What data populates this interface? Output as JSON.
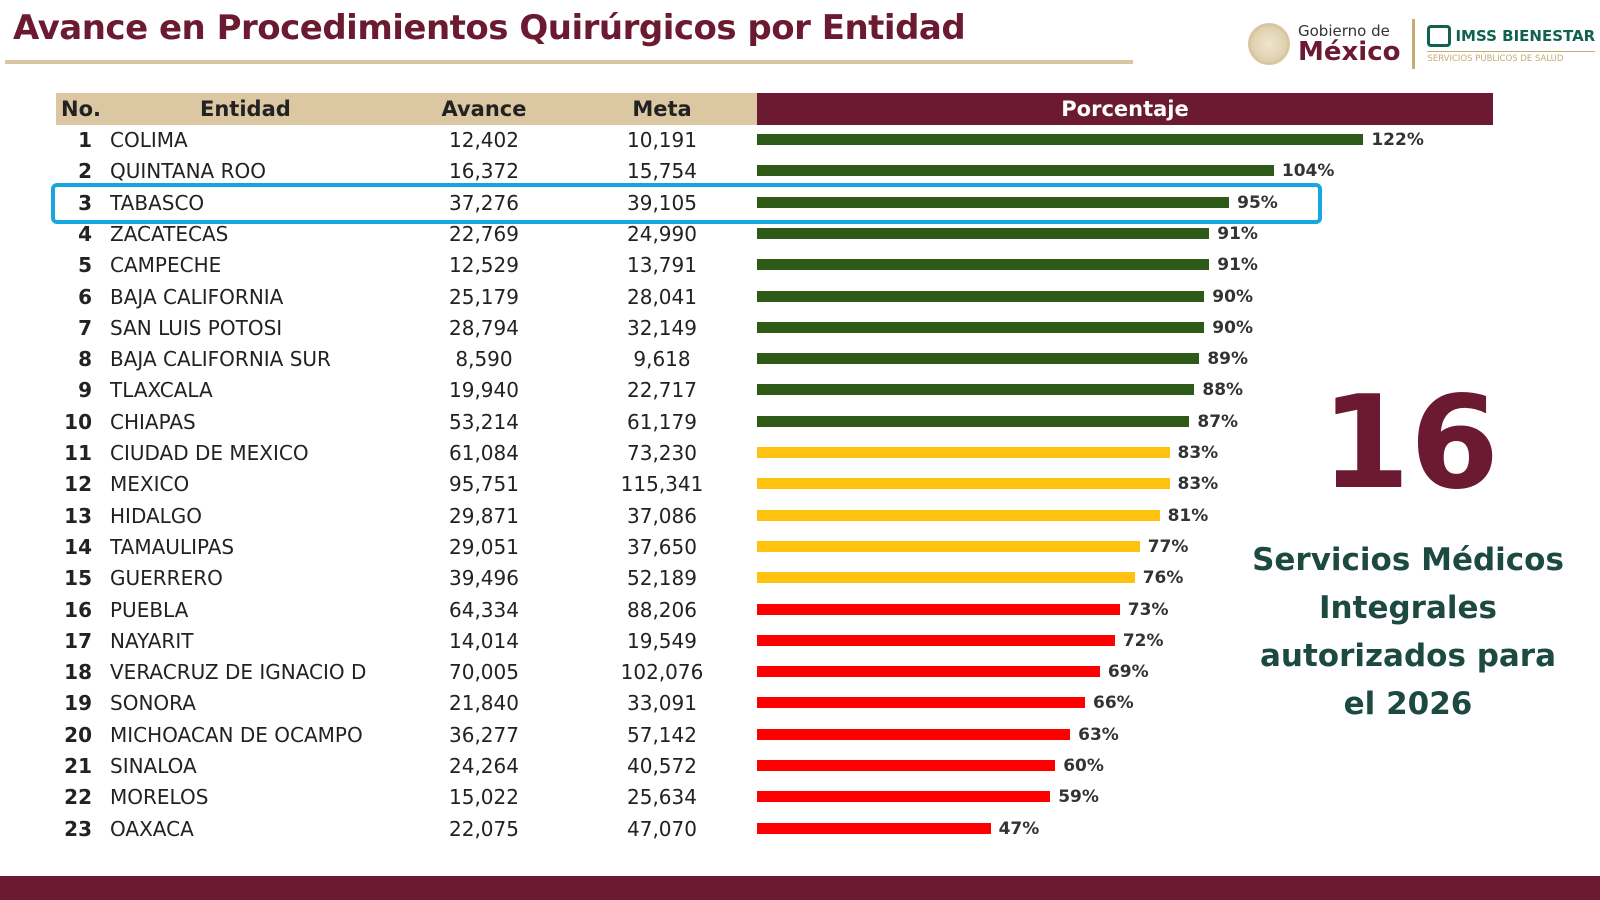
{
  "title": "Avance en Procedimientos Quirúrgicos por Entidad",
  "logos": {
    "gobierno_line1": "Gobierno de",
    "gobierno_line2": "México",
    "imss": "IMSS BIENESTAR",
    "imss_sub": "SERVICIOS PÚBLICOS DE SALUD"
  },
  "table": {
    "headers": {
      "no": "No.",
      "entidad": "Entidad",
      "avance": "Avance",
      "meta": "Meta",
      "porcentaje": "Porcentaje"
    },
    "rows": [
      {
        "no": "1",
        "entidad": "COLIMA",
        "avance": "12,402",
        "meta": "10,191",
        "pct": "122%"
      },
      {
        "no": "2",
        "entidad": "QUINTANA ROO",
        "avance": "16,372",
        "meta": "15,754",
        "pct": "104%"
      },
      {
        "no": "3",
        "entidad": "TABASCO",
        "avance": "37,276",
        "meta": "39,105",
        "pct": "95%"
      },
      {
        "no": "4",
        "entidad": "ZACATECAS",
        "avance": "22,769",
        "meta": "24,990",
        "pct": "91%"
      },
      {
        "no": "5",
        "entidad": "CAMPECHE",
        "avance": "12,529",
        "meta": "13,791",
        "pct": "91%"
      },
      {
        "no": "6",
        "entidad": "BAJA CALIFORNIA",
        "avance": "25,179",
        "meta": "28,041",
        "pct": "90%"
      },
      {
        "no": "7",
        "entidad": "SAN LUIS POTOSI",
        "avance": "28,794",
        "meta": "32,149",
        "pct": "90%"
      },
      {
        "no": "8",
        "entidad": "BAJA CALIFORNIA SUR",
        "avance": "8,590",
        "meta": "9,618",
        "pct": "89%"
      },
      {
        "no": "9",
        "entidad": "TLAXCALA",
        "avance": "19,940",
        "meta": "22,717",
        "pct": "88%"
      },
      {
        "no": "10",
        "entidad": "CHIAPAS",
        "avance": "53,214",
        "meta": "61,179",
        "pct": "87%"
      },
      {
        "no": "11",
        "entidad": "CIUDAD DE MEXICO",
        "avance": "61,084",
        "meta": "73,230",
        "pct": "83%"
      },
      {
        "no": "12",
        "entidad": "MEXICO",
        "avance": "95,751",
        "meta": "115,341",
        "pct": "83%"
      },
      {
        "no": "13",
        "entidad": "HIDALGO",
        "avance": "29,871",
        "meta": "37,086",
        "pct": "81%"
      },
      {
        "no": "14",
        "entidad": "TAMAULIPAS",
        "avance": "29,051",
        "meta": "37,650",
        "pct": "77%"
      },
      {
        "no": "15",
        "entidad": "GUERRERO",
        "avance": "39,496",
        "meta": "52,189",
        "pct": "76%"
      },
      {
        "no": "16",
        "entidad": "PUEBLA",
        "avance": "64,334",
        "meta": "88,206",
        "pct": "73%"
      },
      {
        "no": "17",
        "entidad": "NAYARIT",
        "avance": "14,014",
        "meta": "19,549",
        "pct": "72%"
      },
      {
        "no": "18",
        "entidad": "VERACRUZ DE IGNACIO D",
        "avance": "70,005",
        "meta": "102,076",
        "pct": "69%"
      },
      {
        "no": "19",
        "entidad": "SONORA",
        "avance": "21,840",
        "meta": "33,091",
        "pct": "66%"
      },
      {
        "no": "20",
        "entidad": "MICHOACAN DE OCAMPO",
        "avance": "36,277",
        "meta": "57,142",
        "pct": "63%"
      },
      {
        "no": "21",
        "entidad": "SINALOA",
        "avance": "24,264",
        "meta": "40,572",
        "pct": "60%"
      },
      {
        "no": "22",
        "entidad": "MORELOS",
        "avance": "15,022",
        "meta": "25,634",
        "pct": "59%"
      },
      {
        "no": "23",
        "entidad": "OAXACA",
        "avance": "22,075",
        "meta": "47,070",
        "pct": "47%"
      }
    ]
  },
  "highlight_row": "3",
  "side": {
    "number": "16",
    "text": "Servicios Médicos Integrales autorizados para el 2026"
  },
  "colors": {
    "green": "#2d5a16",
    "yellow": "#ffc20e",
    "red": "#ff0000",
    "maroon": "#6b1a32",
    "highlight": "#19a6e0"
  },
  "chart_data": {
    "type": "bar",
    "orientation": "horizontal",
    "categories": [
      "COLIMA",
      "QUINTANA ROO",
      "TABASCO",
      "ZACATECAS",
      "CAMPECHE",
      "BAJA CALIFORNIA",
      "SAN LUIS POTOSI",
      "BAJA CALIFORNIA SUR",
      "TLAXCALA",
      "CHIAPAS",
      "CIUDAD DE MEXICO",
      "MEXICO",
      "HIDALGO",
      "TAMAULIPAS",
      "GUERRERO",
      "PUEBLA",
      "NAYARIT",
      "VERACRUZ DE IGNACIO D",
      "SONORA",
      "MICHOACAN DE OCAMPO",
      "SINALOA",
      "MORELOS",
      "OAXACA"
    ],
    "values": [
      122,
      104,
      95,
      91,
      91,
      90,
      90,
      89,
      88,
      87,
      83,
      83,
      81,
      77,
      76,
      73,
      72,
      69,
      66,
      63,
      60,
      59,
      47
    ],
    "bar_colors_by_range": {
      "ge_85": "#2d5a16",
      "75_to_84": "#ffc20e",
      "lt_75": "#ff0000"
    },
    "title": "Porcentaje",
    "grid": false
  }
}
